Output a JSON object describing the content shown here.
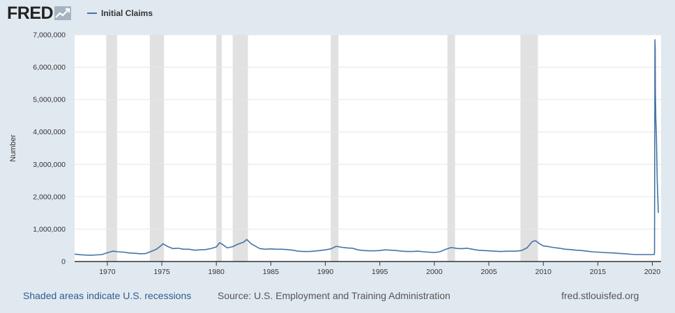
{
  "header": {
    "logo_text": "FRED",
    "legend_label": "Initial Claims"
  },
  "footer": {
    "recession_note": "Shaded areas indicate U.S. recessions",
    "source": "Source: U.S. Employment and Training Administration",
    "site": "fred.stlouisfed.org"
  },
  "colors": {
    "series": "#4572a7",
    "recession": "#e1e1e1",
    "background": "#e1e9f0",
    "plot": "#ffffff",
    "grid": "#e6e6e6"
  },
  "chart_data": {
    "type": "line",
    "title": "",
    "xlabel": "",
    "ylabel": "Number",
    "xlim": [
      1967.0,
      2020.8
    ],
    "ylim": [
      0,
      7000000
    ],
    "x_ticks": [
      "1970",
      "1975",
      "1980",
      "1985",
      "1990",
      "1995",
      "2000",
      "2005",
      "2010",
      "2015",
      "2020"
    ],
    "y_ticks": [
      "0",
      "1,000,000",
      "2,000,000",
      "3,000,000",
      "4,000,000",
      "5,000,000",
      "6,000,000",
      "7,000,000"
    ],
    "grid": "horizontal",
    "legend_position": "top-left",
    "recessions": [
      [
        1969.9,
        1970.9
      ],
      [
        1973.9,
        1975.2
      ],
      [
        1980.0,
        1980.5
      ],
      [
        1981.5,
        1982.9
      ],
      [
        1990.5,
        1991.2
      ],
      [
        2001.2,
        2001.9
      ],
      [
        2007.9,
        2009.5
      ]
    ],
    "series": [
      {
        "name": "Initial Claims",
        "x": [
          1967.0,
          1967.5,
          1968.0,
          1968.5,
          1969.0,
          1969.5,
          1970.0,
          1970.5,
          1971.0,
          1971.5,
          1972.0,
          1972.5,
          1973.0,
          1973.5,
          1974.0,
          1974.5,
          1974.9,
          1975.1,
          1975.5,
          1976.0,
          1976.5,
          1977.0,
          1977.5,
          1978.0,
          1978.5,
          1979.0,
          1979.5,
          1980.0,
          1980.3,
          1980.6,
          1981.0,
          1981.5,
          1982.0,
          1982.5,
          1982.8,
          1983.2,
          1983.6,
          1984.0,
          1984.5,
          1985.0,
          1985.5,
          1986.0,
          1986.5,
          1987.0,
          1987.5,
          1988.0,
          1988.5,
          1989.0,
          1989.5,
          1990.0,
          1990.5,
          1991.0,
          1991.5,
          1992.0,
          1992.5,
          1993.0,
          1993.5,
          1994.0,
          1994.5,
          1995.0,
          1995.5,
          1996.0,
          1996.5,
          1997.0,
          1997.5,
          1998.0,
          1998.5,
          1999.0,
          1999.5,
          2000.0,
          2000.5,
          2001.0,
          2001.5,
          2001.8,
          2002.2,
          2002.6,
          2003.0,
          2003.5,
          2004.0,
          2004.5,
          2005.0,
          2005.5,
          2006.0,
          2006.5,
          2007.0,
          2007.5,
          2008.0,
          2008.5,
          2009.0,
          2009.3,
          2009.6,
          2010.0,
          2010.5,
          2011.0,
          2011.5,
          2012.0,
          2012.5,
          2013.0,
          2013.5,
          2014.0,
          2014.5,
          2015.0,
          2015.5,
          2016.0,
          2016.5,
          2017.0,
          2017.5,
          2018.0,
          2018.5,
          2019.0,
          2019.5,
          2020.0,
          2020.18,
          2020.2,
          2020.22,
          2020.24,
          2020.26,
          2020.28,
          2020.32,
          2020.38,
          2020.45,
          2020.55
        ],
        "values": [
          230000,
          210000,
          200000,
          195000,
          205000,
          215000,
          270000,
          320000,
          300000,
          290000,
          265000,
          255000,
          240000,
          245000,
          310000,
          380000,
          480000,
          550000,
          470000,
          400000,
          410000,
          380000,
          380000,
          350000,
          360000,
          370000,
          400000,
          450000,
          580000,
          520000,
          420000,
          460000,
          540000,
          600000,
          680000,
          550000,
          470000,
          400000,
          380000,
          390000,
          380000,
          380000,
          370000,
          350000,
          320000,
          310000,
          310000,
          320000,
          340000,
          360000,
          390000,
          470000,
          440000,
          420000,
          410000,
          360000,
          340000,
          330000,
          330000,
          340000,
          360000,
          350000,
          340000,
          320000,
          310000,
          310000,
          320000,
          300000,
          290000,
          280000,
          300000,
          370000,
          430000,
          420000,
          400000,
          400000,
          410000,
          380000,
          350000,
          340000,
          330000,
          320000,
          310000,
          315000,
          320000,
          320000,
          340000,
          420000,
          620000,
          640000,
          560000,
          480000,
          460000,
          430000,
          410000,
          380000,
          370000,
          350000,
          340000,
          320000,
          300000,
          290000,
          280000,
          270000,
          265000,
          250000,
          240000,
          225000,
          215000,
          215000,
          215000,
          215000,
          215000,
          280000,
          3300000,
          6850000,
          6600000,
          5200000,
          4400000,
          3800000,
          2500000,
          1500000
        ]
      }
    ]
  }
}
